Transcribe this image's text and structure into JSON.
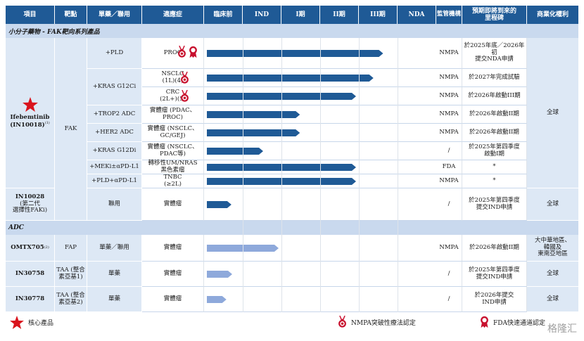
{
  "headers": [
    "項目",
    "靶點",
    "單藥／聯用",
    "適應症",
    "臨床前",
    "IND",
    "I期",
    "II期",
    "III期",
    "NDA",
    "監管機構",
    "預期即將到來的里程碑",
    "商業化權利"
  ],
  "sections": {
    "small_molecule": "小分子藥物 - FAK靶向系列產品",
    "adc": "ADC"
  },
  "products": {
    "ifebemtinib": "Ifebemtinib (IN10018)",
    "ifebemtinib_sup": "(1)",
    "fak": "FAK",
    "in10028_l1": "IN10028",
    "in10028_l2": "(第二代",
    "in10028_l3": "選擇性FAKi)",
    "omtx705": "OMTX705",
    "omtx705_sup": "(2)",
    "fap": "FAP",
    "in30758": "IN30758",
    "taa1_l1": "TAA (整合",
    "taa1_l2": "素亞基1)",
    "in30778": "IN30778",
    "taa2_l1": "TAA (整合",
    "taa2_l2": "素亞基2)"
  },
  "rows": [
    {
      "combo": "+PLD",
      "ind1": "PROC",
      "ind_sup": "(3)",
      "ind2": "",
      "reg": "NMPA",
      "ms1": "於2025年底／2026年初",
      "ms2": "提交NDA申請",
      "icons": [
        "nmpa",
        "fda"
      ]
    },
    {
      "combo": "+KRAS G12Ci",
      "ind1": "NSCLC",
      "ind_sup": "",
      "ind2": "(1L)(4)",
      "reg": "NMPA",
      "ms1": "於2027年完成試驗",
      "ms2": "",
      "icons": [
        "nmpa"
      ]
    },
    {
      "combo": "",
      "ind1": "CRC",
      "ind_sup": "",
      "ind2": "(2L+)(5)",
      "reg": "NMPA",
      "ms1": "於2026年啟動III期",
      "ms2": "",
      "icons": [
        "nmpa"
      ]
    },
    {
      "combo": "+TROP2 ADC",
      "ind1": "實體瘤 (PDAC、",
      "ind_sup": "",
      "ind2": "PROC)",
      "reg": "NMPA",
      "ms1": "於2026年啟動II期",
      "ms2": "",
      "icons": []
    },
    {
      "combo": "+HER2 ADC",
      "ind1": "實體瘤 (NSCLC、",
      "ind_sup": "",
      "ind2": "GC/GEJ)",
      "reg": "NMPA",
      "ms1": "於2026年啟動II期",
      "ms2": "",
      "icons": []
    },
    {
      "combo": "+KRAS G12Di",
      "ind1": "實體瘤 (NSCLC、",
      "ind_sup": "",
      "ind2": "PDAC等)",
      "reg": "/",
      "ms1": "於2025年第四季度",
      "ms2": "啟動I期",
      "icons": []
    },
    {
      "combo": "+MEKi±αPD-L1",
      "ind1": "轉移性UM/NRAS",
      "ind_sup": "",
      "ind2": "黑色素瘤",
      "reg": "FDA",
      "ms1": "*",
      "ms2": "",
      "icons": []
    },
    {
      "combo": "+PLD+αPD-L1",
      "ind1": "TNBC",
      "ind_sup": "",
      "ind2": "(≥2L)",
      "reg": "NMPA",
      "ms1": "*",
      "ms2": "",
      "icons": []
    },
    {
      "combo": "聯用",
      "ind1": "實體瘤",
      "ind_sup": "",
      "ind2": "",
      "reg": "/",
      "ms1": "於2025年第四季度",
      "ms2": "提交IND申請",
      "icons": []
    },
    {
      "combo": "單藥／聯用",
      "ind1": "實體瘤",
      "ind_sup": "",
      "ind2": "",
      "reg": "NMPA",
      "ms1": "於2026年啟動II期",
      "ms2": "",
      "icons": []
    },
    {
      "combo": "單藥",
      "ind1": "實體瘤",
      "ind_sup": "",
      "ind2": "",
      "reg": "/",
      "ms1": "於2025年第四季度",
      "ms2": "提交IND申請",
      "icons": []
    },
    {
      "combo": "單藥",
      "ind1": "實體瘤",
      "ind_sup": "",
      "ind2": "",
      "reg": "/",
      "ms1": "於2026年提交",
      "ms2": "IND申請",
      "icons": []
    }
  ],
  "rights": {
    "fak": "全球",
    "in10028": "全球",
    "omtx_l1": "大中華地區、",
    "omtx_l2": "韓國及",
    "omtx_l3": "東南亞地區",
    "in30758": "全球",
    "in30778": "全球"
  },
  "chart_data": {
    "type": "bar",
    "stages": [
      "臨床前",
      "IND",
      "I期",
      "II期",
      "III期",
      "NDA"
    ],
    "categories": [
      "Ifebemtinib +PLD PROC",
      "Ifebemtinib +KRAS G12Ci NSCLC",
      "Ifebemtinib +KRAS G12Ci CRC",
      "Ifebemtinib +TROP2 ADC",
      "Ifebemtinib +HER2 ADC",
      "Ifebemtinib +KRAS G12Di",
      "Ifebemtinib +MEKi±αPD-L1",
      "Ifebemtinib +PLD+αPD-L1",
      "IN10028",
      "OMTX705",
      "IN30758",
      "IN30778"
    ],
    "values": [
      4.7,
      4.45,
      4.0,
      2.55,
      2.55,
      1.6,
      4.0,
      4.0,
      0.78,
      2.0,
      0.8,
      0.65
    ],
    "xlim": [
      0,
      6
    ]
  },
  "legend": {
    "core": "核心產品",
    "nmpa": "NMPA突破性療法認定",
    "fda": "FDA快速通道認定"
  },
  "colors": {
    "header": "#1f5a96",
    "section": "#c9d9ee",
    "cell": "#dde8f5",
    "bar_fak": "#1f5a96",
    "bar_adc": "#8ea9db",
    "star": "#d9141d",
    "badge": "#c8102e"
  },
  "watermark": "格隆汇"
}
